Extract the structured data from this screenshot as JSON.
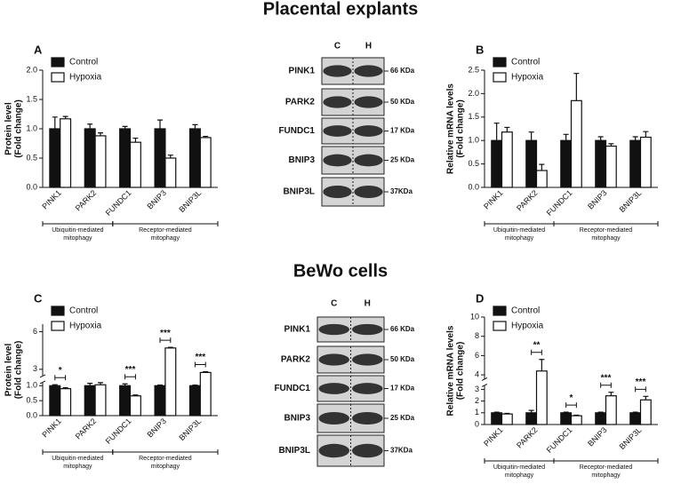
{
  "sections": [
    "Placental explants",
    "BeWo cells"
  ],
  "chart_data": [
    {
      "type": "bar",
      "panel": "A",
      "ylabel": [
        "Protein level",
        "(Fold change)"
      ],
      "categories": [
        "PINK1",
        "PARK2",
        "FUNDC1",
        "BNIP3",
        "BNIP3L"
      ],
      "series": [
        {
          "name": "Control",
          "color": "#111111",
          "values": [
            1.0,
            1.0,
            1.0,
            1.0,
            1.0
          ],
          "errors": [
            0.2,
            0.08,
            0.04,
            0.15,
            0.07
          ]
        },
        {
          "name": "Hypoxia",
          "color": "#ffffff",
          "values": [
            1.17,
            0.88,
            0.77,
            0.5,
            0.85
          ],
          "errors": [
            0.04,
            0.05,
            0.07,
            0.05,
            0.02
          ]
        }
      ],
      "ylim": [
        0,
        2.0
      ],
      "yticks": [
        {
          "value": 0,
          "label": "0.0"
        },
        {
          "value": 0.5,
          "label": "0.5"
        },
        {
          "value": 1,
          "label": "1.0"
        },
        {
          "value": 1.5,
          "label": "1.5"
        },
        {
          "value": 2,
          "label": "2.0"
        }
      ],
      "groups": [
        {
          "lines": [
            "Ubiquitin-mediated",
            "mitophagy"
          ],
          "from": "PINK1",
          "to": "PARK2"
        },
        {
          "lines": [
            "Receptor-mediated",
            "mitophagy"
          ],
          "from": "FUNDC1",
          "to": "BNIP3L"
        }
      ],
      "annotations": []
    },
    {
      "type": "bar",
      "panel": "B",
      "ylabel": [
        "Relative mRNA levels",
        "(Fold change)"
      ],
      "categories": [
        "PINK1",
        "PARK2",
        "FUNDC1",
        "BNIP3",
        "BNIP3L"
      ],
      "series": [
        {
          "name": "Control",
          "color": "#111111",
          "values": [
            1.0,
            1.0,
            1.0,
            1.0,
            1.0
          ],
          "errors": [
            0.37,
            0.18,
            0.13,
            0.08,
            0.08
          ]
        },
        {
          "name": "Hypoxia",
          "color": "#ffffff",
          "values": [
            1.18,
            0.36,
            1.85,
            0.88,
            1.07
          ],
          "errors": [
            0.1,
            0.13,
            0.58,
            0.05,
            0.12
          ]
        }
      ],
      "ylim": [
        0,
        2.5
      ],
      "yticks": [
        {
          "value": 0,
          "label": "0.0"
        },
        {
          "value": 0.5,
          "label": "0.5"
        },
        {
          "value": 1,
          "label": "1.0"
        },
        {
          "value": 1.5,
          "label": "1.5"
        },
        {
          "value": 2,
          "label": "2.0"
        },
        {
          "value": 2.5,
          "label": "2.5"
        }
      ],
      "groups": [
        {
          "lines": [
            "Ubiquitin-mediated",
            "mitophagy"
          ],
          "from": "PINK1",
          "to": "PARK2"
        },
        {
          "lines": [
            "Receptor-mediated",
            "mitophagy"
          ],
          "from": "FUNDC1",
          "to": "BNIP3L"
        }
      ],
      "annotations": []
    },
    {
      "type": "bar",
      "panel": "C",
      "ylabel": [
        "Protein level",
        "(Fold change)"
      ],
      "categories": [
        "PINK1",
        "PARK2",
        "FUNDC1",
        "BNIP3",
        "BNIP3L"
      ],
      "series": [
        {
          "name": "Control",
          "color": "#111111",
          "values": [
            1.0,
            1.0,
            1.0,
            1.0,
            1.0
          ],
          "errors": [
            0.03,
            0.08,
            0.06,
            0.02,
            0.02
          ]
        },
        {
          "name": "Hypoxia",
          "color": "#ffffff",
          "values": [
            0.9,
            1.03,
            0.66,
            4.7,
            2.75
          ],
          "errors": [
            0.03,
            0.08,
            0.03,
            0.05,
            0.06
          ]
        }
      ],
      "ylim": [
        0,
        6.6
      ],
      "ybreak": [
        1.1,
        2.5
      ],
      "yticks": [
        {
          "value": 0,
          "label": "0.0"
        },
        {
          "value": 0.5,
          "label": "0.5"
        },
        {
          "value": 1,
          "label": "1.0"
        },
        3,
        6
      ],
      "groups": [
        {
          "lines": [
            "Ubiquitin-mediated",
            "mitophagy"
          ],
          "from": "PINK1",
          "to": "PARK2"
        },
        {
          "lines": [
            "Receptor-mediated",
            "mitophagy"
          ],
          "from": "FUNDC1",
          "to": "BNIP3L"
        }
      ],
      "annotations": [
        {
          "text": "*",
          "category": "PINK1"
        },
        {
          "text": "***",
          "category": "FUNDC1"
        },
        {
          "text": "***",
          "category": "BNIP3"
        },
        {
          "text": "***",
          "category": "BNIP3L"
        }
      ]
    },
    {
      "type": "bar",
      "panel": "D",
      "ylabel": [
        "Relative mRNA levels",
        "(Fold change)"
      ],
      "categories": [
        "PINK1",
        "PARK2",
        "FUNDC1",
        "BNIP3",
        "BNIP3L"
      ],
      "series": [
        {
          "name": "Control",
          "color": "#111111",
          "values": [
            1.0,
            1.0,
            1.0,
            1.0,
            1.0
          ],
          "errors": [
            0.05,
            0.2,
            0.05,
            0.05,
            0.05
          ]
        },
        {
          "name": "Hypoxia",
          "color": "#ffffff",
          "values": [
            0.9,
            4.4,
            0.75,
            2.45,
            2.1
          ],
          "errors": [
            0.05,
            1.2,
            0.05,
            0.3,
            0.3
          ]
        }
      ],
      "ylim": [
        0,
        10
      ],
      "ybreak": [
        3.3,
        3.6
      ],
      "yticks": [
        0,
        1,
        2,
        3,
        4,
        6,
        8,
        10
      ],
      "groups": [
        {
          "lines": [
            "Ubiquitin-mediated",
            "mitophagy"
          ],
          "from": "PINK1",
          "to": "PARK2"
        },
        {
          "lines": [
            "Receptor-mediated",
            "mitophagy"
          ],
          "from": "FUNDC1",
          "to": "BNIP3L"
        }
      ],
      "annotations": [
        {
          "text": "**",
          "category": "PARK2"
        },
        {
          "text": "*",
          "category": "FUNDC1"
        },
        {
          "text": "***",
          "category": "BNIP3"
        },
        {
          "text": "***",
          "category": "BNIP3L"
        }
      ]
    }
  ],
  "blots": [
    {
      "lanes": [
        "C",
        "H"
      ],
      "rows": [
        {
          "protein": "PINK1",
          "size": "66 KDa"
        },
        {
          "protein": "PARK2",
          "size": "50 KDa"
        },
        {
          "protein": "FUNDC1",
          "size": "17 KDa"
        },
        {
          "protein": "BNIP3",
          "size": "25 KDa"
        },
        {
          "protein": "BNIP3L",
          "size": "37KDa"
        }
      ]
    },
    {
      "lanes": [
        "C",
        "H"
      ],
      "rows": [
        {
          "protein": "PINK1",
          "size": "66 KDa"
        },
        {
          "protein": "PARK2",
          "size": "50 KDa"
        },
        {
          "protein": "FUNDC1",
          "size": "17 KDa"
        },
        {
          "protein": "BNIP3",
          "size": "25 KDa"
        },
        {
          "protein": "BNIP3L",
          "size": "37KDa"
        }
      ]
    }
  ]
}
